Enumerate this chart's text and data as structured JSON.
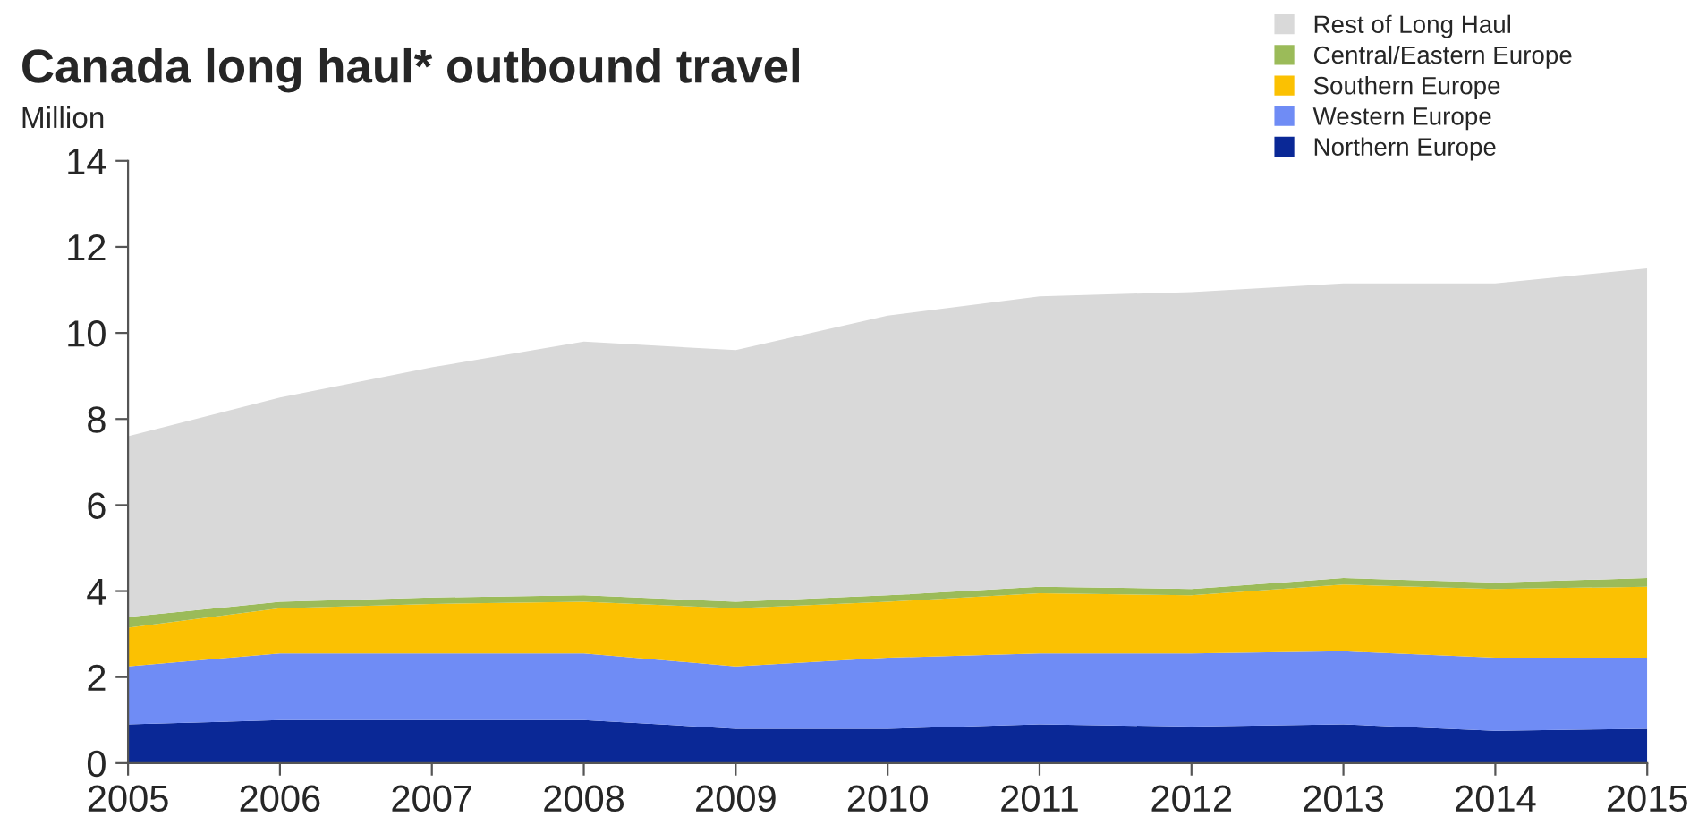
{
  "chart_data": {
    "type": "area",
    "stacked": true,
    "title": "Canada long haul* outbound travel",
    "ylabel": "Million",
    "x": [
      "2005",
      "2006",
      "2007",
      "2008",
      "2009",
      "2010",
      "2011",
      "2012",
      "2013",
      "2014",
      "2015"
    ],
    "xlim": [
      "2005",
      "2015"
    ],
    "xticks": [
      {
        "value": "2005",
        "label": "2005"
      },
      {
        "value": "2006",
        "label": "2006"
      },
      {
        "value": "2007",
        "label": "2007"
      },
      {
        "value": "2008",
        "label": "2008"
      },
      {
        "value": "2009",
        "label": "2009"
      },
      {
        "value": "2010",
        "label": "2010"
      },
      {
        "value": "2011",
        "label": "2011"
      },
      {
        "value": "2012",
        "label": "2012"
      },
      {
        "value": "2013",
        "label": "2013"
      },
      {
        "value": "2014",
        "label": "2014"
      },
      {
        "value": "2015",
        "label": "2015"
      }
    ],
    "ylim": [
      0,
      14
    ],
    "yticks": [
      0,
      2,
      4,
      6,
      8,
      10,
      12,
      14
    ],
    "grid": false,
    "legend": "top right",
    "series": [
      {
        "name": "Northern Europe",
        "color": "#0a2896",
        "values": [
          0.9,
          1.0,
          1.0,
          1.0,
          0.8,
          0.8,
          0.9,
          0.85,
          0.9,
          0.75,
          0.8
        ]
      },
      {
        "name": "Western Europe",
        "color": "#6f8cf5",
        "values": [
          1.35,
          1.55,
          1.55,
          1.55,
          1.45,
          1.65,
          1.65,
          1.7,
          1.7,
          1.7,
          1.65
        ]
      },
      {
        "name": "Southern Europe",
        "color": "#fbc102",
        "values": [
          0.9,
          1.05,
          1.15,
          1.2,
          1.35,
          1.3,
          1.4,
          1.35,
          1.55,
          1.6,
          1.65
        ]
      },
      {
        "name": "Central/Eastern Europe",
        "color": "#9bbb59",
        "values": [
          0.25,
          0.15,
          0.15,
          0.15,
          0.15,
          0.15,
          0.15,
          0.15,
          0.15,
          0.15,
          0.2
        ]
      },
      {
        "name": "Rest of Long Haul",
        "color": "#d9d9d9",
        "values": [
          4.2,
          4.75,
          5.35,
          5.9,
          5.85,
          6.5,
          6.75,
          6.9,
          6.85,
          6.95,
          7.2
        ]
      }
    ]
  }
}
